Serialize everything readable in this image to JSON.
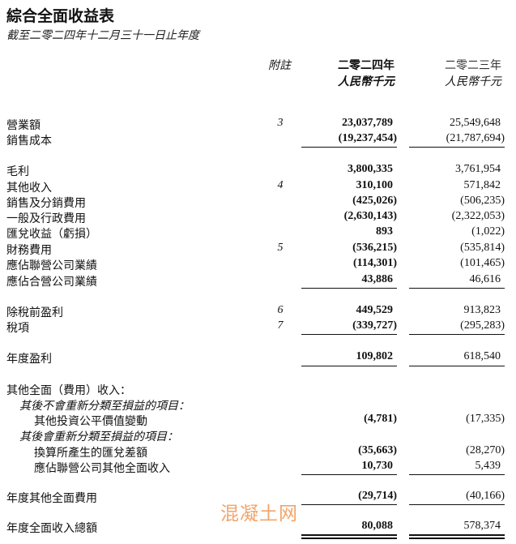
{
  "title": "綜合全面收益表",
  "subtitle": "截至二零二四年十二月三十一日止年度",
  "header": {
    "note": "附註",
    "y2024": "二零二四年",
    "y2023": "二零二三年",
    "unit2024": "人民幣千元",
    "unit2023": "人民幣千元"
  },
  "rows": [
    {
      "label": "營業額",
      "note": "3",
      "v2024": "23,037,789",
      "v2023": "25,549,648"
    },
    {
      "label": "銷售成本",
      "note": "",
      "v2024": "(19,237,454)",
      "v2023": "(21,787,694)",
      "line": "single"
    },
    {
      "label": "毛利",
      "note": "",
      "v2024": "3,800,335",
      "v2023": "3,761,954"
    },
    {
      "label": "其他收入",
      "note": "4",
      "v2024": "310,100",
      "v2023": "571,842"
    },
    {
      "label": "銷售及分銷費用",
      "note": "",
      "v2024": "(425,026)",
      "v2023": "(506,235)"
    },
    {
      "label": "一般及行政費用",
      "note": "",
      "v2024": "(2,630,143)",
      "v2023": "(2,322,053)"
    },
    {
      "label": "匯兌收益（虧損）",
      "note": "",
      "v2024": "893",
      "v2023": "(1,022)"
    },
    {
      "label": "財務費用",
      "note": "5",
      "v2024": "(536,215)",
      "v2023": "(535,814)"
    },
    {
      "label": "應佔聯營公司業績",
      "note": "",
      "v2024": "(114,301)",
      "v2023": "(101,465)"
    },
    {
      "label": "應佔合營公司業績",
      "note": "",
      "v2024": "43,886",
      "v2023": "46,616",
      "line": "single"
    },
    {
      "label": "除稅前盈利",
      "note": "6",
      "v2024": "449,529",
      "v2023": "913,823"
    },
    {
      "label": "稅項",
      "note": "7",
      "v2024": "(339,727)",
      "v2023": "(295,283)",
      "line": "single"
    },
    {
      "label": "年度盈利",
      "note": "",
      "v2024": "109,802",
      "v2023": "618,540",
      "line": "single"
    },
    {
      "label": "其他全面（費用）收入：",
      "note": "",
      "v2024": "",
      "v2023": ""
    },
    {
      "label": "其後不會重新分類至損益的項目：",
      "note": "",
      "v2024": "",
      "v2023": "",
      "level": 1
    },
    {
      "label": "其他投資公平價值變動",
      "note": "",
      "v2024": "(4,781)",
      "v2023": "(17,335)",
      "level": 2
    },
    {
      "label": "其後會重新分類至損益的項目：",
      "note": "",
      "v2024": "",
      "v2023": "",
      "level": 1
    },
    {
      "label": "換算所產生的匯兌差額",
      "note": "",
      "v2024": "(35,663)",
      "v2023": "(28,270)",
      "level": 2
    },
    {
      "label": "應佔聯營公司其他全面收入",
      "note": "",
      "v2024": "10,730",
      "v2023": "5,439",
      "level": 2,
      "line": "single"
    },
    {
      "label": "年度其他全面費用",
      "note": "",
      "v2024": "(29,714)",
      "v2023": "(40,166)",
      "line": "single"
    },
    {
      "label": "年度全面收入總額",
      "note": "",
      "v2024": "80,088",
      "v2023": "578,374",
      "line": "double"
    }
  ],
  "watermark": "混凝土网"
}
